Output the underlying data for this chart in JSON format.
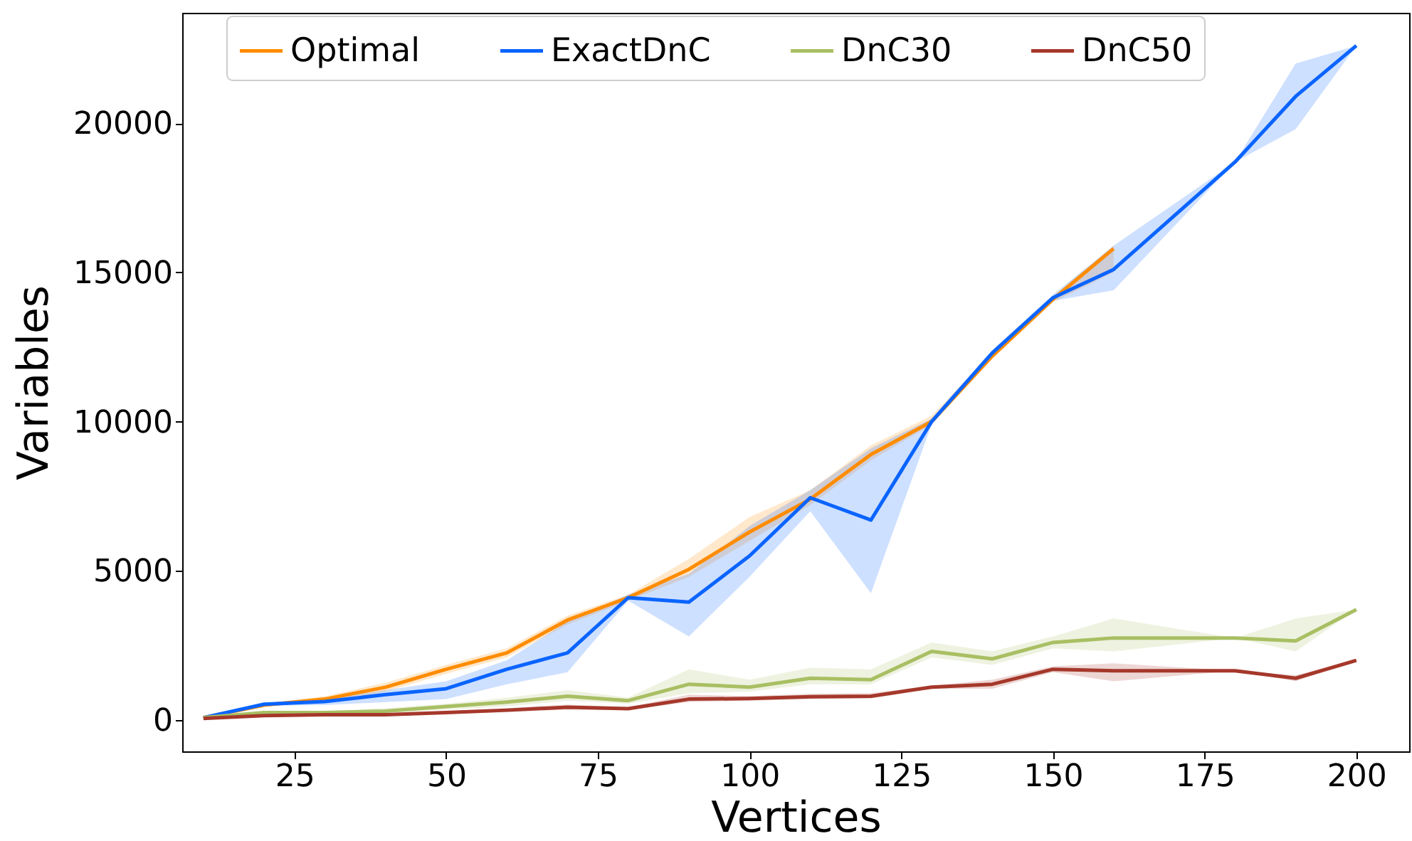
{
  "chart_data": {
    "type": "line",
    "xlabel": "Vertices",
    "ylabel": "Variables",
    "x": [
      10,
      20,
      30,
      40,
      50,
      60,
      70,
      80,
      90,
      100,
      110,
      120,
      130,
      140,
      150,
      160,
      180,
      190,
      200
    ],
    "xlim": [
      6.5,
      208.7
    ],
    "xticks": [
      25,
      50,
      75,
      100,
      125,
      150,
      175,
      200
    ],
    "ylim": [
      -1050,
      23700
    ],
    "yticks": [
      0,
      5000,
      10000,
      15000,
      20000
    ],
    "grid": false,
    "legend": "top",
    "line_style": "solid",
    "series": [
      {
        "name": "Optimal",
        "color": "#ff8c00",
        "x": [
          10,
          20,
          30,
          40,
          50,
          60,
          70,
          80,
          90,
          100,
          110,
          120,
          130,
          140,
          150,
          160
        ],
        "values": [
          80,
          500,
          700,
          1100,
          1700,
          2250,
          3350,
          4100,
          5050,
          6300,
          7400,
          8900,
          10000,
          12200,
          14100,
          15800
        ],
        "lower": [
          60,
          450,
          600,
          950,
          1550,
          2100,
          3200,
          4000,
          4800,
          6000,
          7200,
          8700,
          9900,
          12100,
          14000,
          15000
        ],
        "upper": [
          100,
          550,
          800,
          1250,
          1850,
          2400,
          3500,
          4200,
          5400,
          6800,
          7700,
          9200,
          10200,
          12300,
          14200,
          15900
        ]
      },
      {
        "name": "ExactDnC",
        "color": "#0a64ff",
        "values": [
          80,
          530,
          620,
          850,
          1050,
          1700,
          2250,
          4100,
          3950,
          5500,
          7450,
          6700,
          10000,
          12300,
          14150,
          15100,
          18700,
          20900,
          22600
        ],
        "lower": [
          60,
          480,
          500,
          600,
          700,
          1200,
          1600,
          4000,
          2800,
          4800,
          7000,
          4250,
          9900,
          12200,
          14050,
          14400,
          18700,
          19800,
          22600
        ],
        "upper": [
          100,
          560,
          700,
          1000,
          1300,
          2000,
          3300,
          4200,
          4900,
          6500,
          7700,
          9100,
          10100,
          12400,
          14250,
          15900,
          18700,
          22000,
          22600
        ]
      },
      {
        "name": "DnC30",
        "color": "#a8bf63",
        "values": [
          80,
          250,
          250,
          300,
          450,
          600,
          800,
          650,
          1200,
          1100,
          1400,
          1350,
          2300,
          2050,
          2600,
          2750,
          2750,
          2650,
          3700
        ],
        "lower": [
          60,
          200,
          200,
          250,
          350,
          450,
          650,
          550,
          900,
          950,
          1200,
          1200,
          2100,
          1850,
          2400,
          2300,
          2750,
          2300,
          3700
        ],
        "upper": [
          100,
          300,
          300,
          400,
          550,
          750,
          1000,
          750,
          1700,
          1350,
          1750,
          1700,
          2600,
          2300,
          2800,
          3400,
          2750,
          3400,
          3700
        ]
      },
      {
        "name": "DnC50",
        "color": "#a5382b",
        "values": [
          50,
          150,
          180,
          180,
          250,
          330,
          430,
          380,
          700,
          720,
          780,
          800,
          1100,
          1200,
          1700,
          1650,
          1650,
          1400,
          2000
        ],
        "lower": [
          30,
          120,
          150,
          150,
          200,
          260,
          350,
          330,
          600,
          650,
          700,
          720,
          1050,
          1050,
          1600,
          1300,
          1650,
          1300,
          2000
        ],
        "upper": [
          70,
          180,
          220,
          220,
          300,
          400,
          520,
          430,
          850,
          800,
          880,
          900,
          1150,
          1350,
          1800,
          1900,
          1650,
          1500,
          2000
        ]
      }
    ]
  }
}
